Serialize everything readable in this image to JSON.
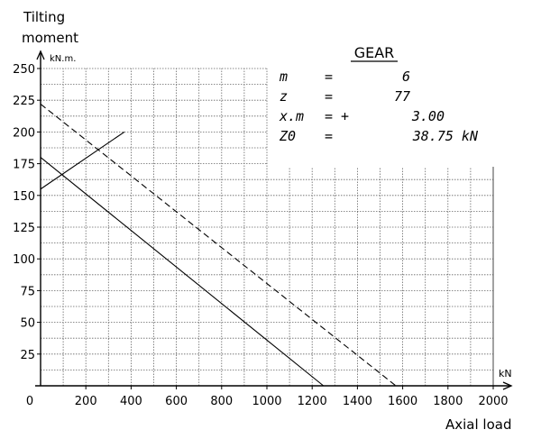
{
  "chart_data": {
    "type": "line",
    "ylabel_line1": "Tilting",
    "ylabel_line2": "moment",
    "yunit": "kN.m.",
    "xlabel": "Axial load",
    "xunit": "kN",
    "xlim": [
      0,
      2000
    ],
    "ylim": [
      0,
      250
    ],
    "x_ticks": [
      0,
      200,
      400,
      600,
      800,
      1000,
      1200,
      1400,
      1600,
      1800,
      2000
    ],
    "y_ticks": [
      25,
      50,
      75,
      100,
      125,
      150,
      175,
      200,
      225,
      250
    ],
    "x_origin_label": "0",
    "grid": true,
    "series": [
      {
        "style": "solid",
        "x": [
          0,
          1250
        ],
        "y": [
          180,
          0
        ]
      },
      {
        "style": "dashed",
        "x": [
          0,
          1570
        ],
        "y": [
          222,
          0
        ]
      },
      {
        "style": "solid",
        "x": [
          0,
          370
        ],
        "y": [
          155,
          200
        ]
      }
    ],
    "annotation": {
      "title": "GEAR",
      "rows": [
        {
          "name": "m",
          "eq": "=",
          "value": "6"
        },
        {
          "name": "z",
          "eq": "=",
          "value": "77"
        },
        {
          "name": "x.m",
          "eq": "= +",
          "value": "3.00"
        },
        {
          "name": "Z0",
          "eq": "=",
          "value": "38.75 kN"
        }
      ]
    }
  }
}
